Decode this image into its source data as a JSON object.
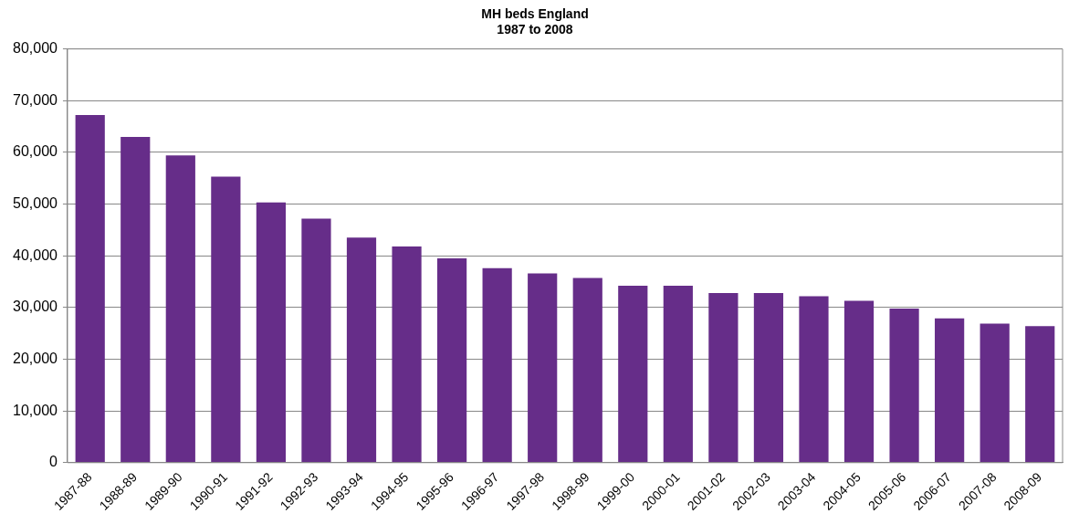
{
  "chart_data": {
    "type": "bar",
    "title": "MH beds England",
    "subtitle": "1987 to 2008",
    "categories": [
      "1987-88",
      "1988-89",
      "1989-90",
      "1990-91",
      "1991-92",
      "1992-93",
      "1993-94",
      "1994-95",
      "1995-96",
      "1996-97",
      "1997-98",
      "1998-99",
      "1999-00",
      "2000-01",
      "2001-02",
      "2002-03",
      "2003-04",
      "2004-05",
      "2005-06",
      "2006-07",
      "2007-08",
      "2008-09"
    ],
    "values": [
      67200,
      63000,
      59400,
      55300,
      50300,
      47200,
      43500,
      41800,
      39500,
      37600,
      36600,
      35700,
      34200,
      34200,
      32800,
      32800,
      32200,
      31300,
      29800,
      27900,
      26900,
      26400
    ],
    "color": "#662d89",
    "ylim": [
      0,
      80000
    ],
    "yticks": [
      0,
      {
        "value": 10000,
        "label": "10,000"
      },
      {
        "value": 20000,
        "label": "20,000"
      },
      {
        "value": 30000,
        "label": "30,000"
      },
      {
        "value": 40000,
        "label": "40,000"
      },
      {
        "value": 50000,
        "label": "50,000"
      },
      {
        "value": 60000,
        "label": "60,000"
      },
      {
        "value": 70000,
        "label": "70,000"
      },
      {
        "value": 80000,
        "label": "80,000"
      }
    ],
    "grid": "y"
  }
}
